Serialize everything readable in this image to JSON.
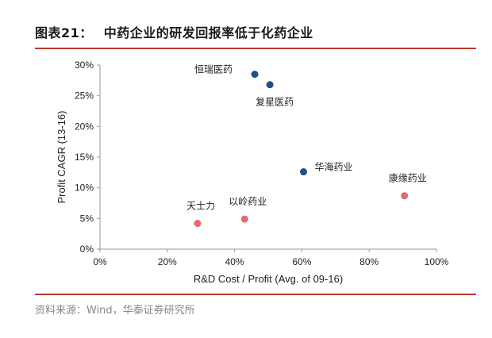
{
  "figure": {
    "label": "图表21：",
    "title": "中药企业的研发回报率低于化药企业"
  },
  "source": "资料来源：Wind，华泰证券研究所",
  "chart_data": {
    "type": "scatter",
    "xlabel": "R&D Cost / Profit (Avg. of 09-16)",
    "ylabel": "Profit CAGR (13-16)",
    "xlim": [
      0,
      100
    ],
    "ylim": [
      0,
      30
    ],
    "x_ticks": [
      "0%",
      "20%",
      "40%",
      "60%",
      "80%",
      "100%"
    ],
    "y_ticks": [
      "0%",
      "5%",
      "10%",
      "15%",
      "20%",
      "25%",
      "30%"
    ],
    "grid": false,
    "colors": {
      "chemical": "#1f4e8c",
      "tcm": "#e8686f"
    },
    "points": [
      {
        "name": "恒瑞医药",
        "x": 46,
        "y": 28.5,
        "group": "chemical",
        "label_pos": "upper-left"
      },
      {
        "name": "复星医药",
        "x": 50.5,
        "y": 26.8,
        "group": "chemical",
        "label_pos": "below"
      },
      {
        "name": "华海药业",
        "x": 60.5,
        "y": 12.6,
        "group": "chemical",
        "label_pos": "upper-right"
      },
      {
        "name": "天士力",
        "x": 29,
        "y": 4.2,
        "group": "tcm",
        "label_pos": "above"
      },
      {
        "name": "以岭药业",
        "x": 43,
        "y": 4.9,
        "group": "tcm",
        "label_pos": "above"
      },
      {
        "name": "康缘药业",
        "x": 90.5,
        "y": 8.7,
        "group": "tcm",
        "label_pos": "above"
      }
    ]
  }
}
